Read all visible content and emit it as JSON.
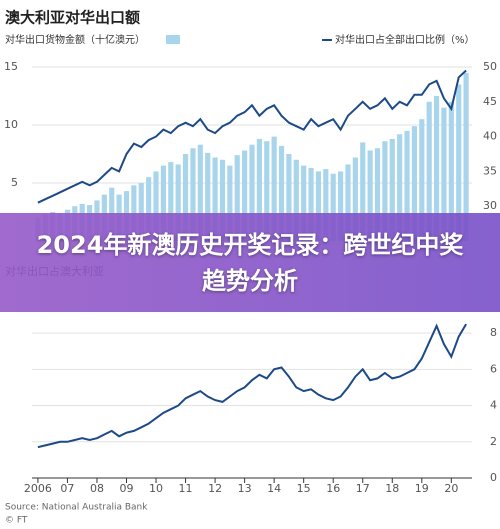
{
  "banner": {
    "title": "2024年新澳历史开奖记录：跨世纪中奖趋势分析"
  },
  "chart_data": [
    {
      "type": "bar_line",
      "title": "澳大利亚对华出口额",
      "x": [
        2006,
        2006.25,
        2006.5,
        2006.75,
        2007,
        2007.25,
        2007.5,
        2007.75,
        2008,
        2008.25,
        2008.5,
        2008.75,
        2009,
        2009.25,
        2009.5,
        2009.75,
        2010,
        2010.25,
        2010.5,
        2010.75,
        2011,
        2011.25,
        2011.5,
        2011.75,
        2012,
        2012.25,
        2012.5,
        2012.75,
        2013,
        2013.25,
        2013.5,
        2013.75,
        2014,
        2014.25,
        2014.5,
        2014.75,
        2015,
        2015.25,
        2015.5,
        2015.75,
        2016,
        2016.25,
        2016.5,
        2016.75,
        2017,
        2017.25,
        2017.5,
        2017.75,
        2018,
        2018.25,
        2018.5,
        2018.75,
        2019,
        2019.25,
        2019.5,
        2019.75,
        2020,
        2020.25,
        2020.5
      ],
      "xlim": [
        2005.8,
        2020.7
      ],
      "ylim": [
        0,
        15
      ],
      "yticks": [
        5,
        10,
        15
      ],
      "y2lim": [
        25,
        50
      ],
      "y2ticks": [
        30,
        35,
        40,
        45,
        50
      ],
      "grid": true,
      "series": [
        {
          "name": "对华出口货物金额（十亿澳元）",
          "type": "bar",
          "color": "#a8d5ec",
          "values": [
            2.0,
            2.3,
            2.5,
            2.4,
            2.7,
            3.0,
            3.2,
            3.1,
            3.5,
            4.0,
            4.6,
            4.0,
            4.3,
            4.8,
            5.0,
            5.5,
            6.0,
            6.5,
            6.8,
            6.6,
            7.5,
            8.0,
            8.3,
            7.6,
            7.2,
            7.0,
            6.5,
            7.4,
            7.8,
            8.3,
            8.8,
            8.6,
            9.0,
            8.2,
            7.5,
            7.0,
            6.5,
            6.3,
            6.0,
            6.2,
            5.8,
            6.0,
            6.6,
            7.2,
            8.5,
            7.8,
            8.0,
            8.6,
            8.8,
            9.2,
            9.5,
            9.9,
            10.5,
            12.0,
            12.5,
            11.5,
            12.0,
            13.5,
            14.5
          ]
        },
        {
          "name": "对华出口占全部出口比例（%）",
          "type": "line",
          "axis": "y2",
          "color": "#1c4a86",
          "values": [
            30.5,
            31.0,
            31.5,
            32.0,
            32.5,
            33.0,
            33.5,
            33.0,
            33.5,
            34.5,
            35.5,
            35.0,
            37.5,
            39.0,
            38.5,
            39.5,
            40.0,
            41.0,
            40.5,
            41.5,
            42.0,
            41.5,
            42.5,
            41.0,
            40.5,
            41.5,
            42.0,
            43.0,
            43.5,
            44.5,
            43.0,
            44.0,
            44.5,
            43.0,
            42.0,
            41.5,
            41.0,
            42.5,
            41.5,
            42.0,
            42.5,
            41.0,
            43.0,
            44.0,
            45.0,
            44.0,
            44.5,
            45.5,
            44.0,
            45.0,
            44.5,
            46.0,
            46.0,
            47.5,
            48.0,
            45.5,
            44.0,
            48.5,
            49.5
          ]
        }
      ]
    },
    {
      "type": "line",
      "title": "对华出口占澳大利亚",
      "x": [
        2006,
        2006.25,
        2006.5,
        2006.75,
        2007,
        2007.25,
        2007.5,
        2007.75,
        2008,
        2008.25,
        2008.5,
        2008.75,
        2009,
        2009.25,
        2009.5,
        2009.75,
        2010,
        2010.25,
        2010.5,
        2010.75,
        2011,
        2011.25,
        2011.5,
        2011.75,
        2012,
        2012.25,
        2012.5,
        2012.75,
        2013,
        2013.25,
        2013.5,
        2013.75,
        2014,
        2014.25,
        2014.5,
        2014.75,
        2015,
        2015.25,
        2015.5,
        2015.75,
        2016,
        2016.25,
        2016.5,
        2016.75,
        2017,
        2017.25,
        2017.5,
        2017.75,
        2018,
        2018.25,
        2018.5,
        2018.75,
        2019,
        2019.25,
        2019.5,
        2019.75,
        2020,
        2020.25,
        2020.5
      ],
      "xlim": [
        2005.8,
        2020.7
      ],
      "xticks": [
        2006,
        {
          "value": 2007,
          "label": "07"
        },
        {
          "value": 2008,
          "label": "08"
        },
        {
          "value": 2009,
          "label": "09"
        },
        {
          "value": 2010,
          "label": "10"
        },
        {
          "value": 2011,
          "label": "11"
        },
        {
          "value": 2012,
          "label": "12"
        },
        {
          "value": 2013,
          "label": "13"
        },
        {
          "value": 2014,
          "label": "14"
        },
        {
          "value": 2015,
          "label": "15"
        },
        {
          "value": 2016,
          "label": "16"
        },
        {
          "value": 2017,
          "label": "17"
        },
        {
          "value": 2018,
          "label": "18"
        },
        {
          "value": 2019,
          "label": "19"
        },
        {
          "value": 2020,
          "label": "20"
        }
      ],
      "ylim": [
        0,
        9
      ],
      "y2ticks": [
        0,
        2,
        4,
        6,
        8
      ],
      "grid": true,
      "series": [
        {
          "name": null,
          "type": "line",
          "color": "#1c4a86",
          "values": [
            1.7,
            1.8,
            1.9,
            2.0,
            2.0,
            2.1,
            2.2,
            2.1,
            2.2,
            2.4,
            2.6,
            2.3,
            2.5,
            2.6,
            2.8,
            3.0,
            3.3,
            3.6,
            3.8,
            4.0,
            4.4,
            4.6,
            4.8,
            4.5,
            4.3,
            4.2,
            4.5,
            4.8,
            5.0,
            5.4,
            5.7,
            5.5,
            6.0,
            6.1,
            5.6,
            5.0,
            4.8,
            4.9,
            4.6,
            4.4,
            4.3,
            4.5,
            5.0,
            5.6,
            6.0,
            5.4,
            5.5,
            5.8,
            5.5,
            5.6,
            5.8,
            6.0,
            6.6,
            7.5,
            8.4,
            7.4,
            6.7,
            7.8,
            8.5
          ]
        }
      ],
      "source": "Source: National Australia Bank",
      "credit": "© FT"
    }
  ]
}
